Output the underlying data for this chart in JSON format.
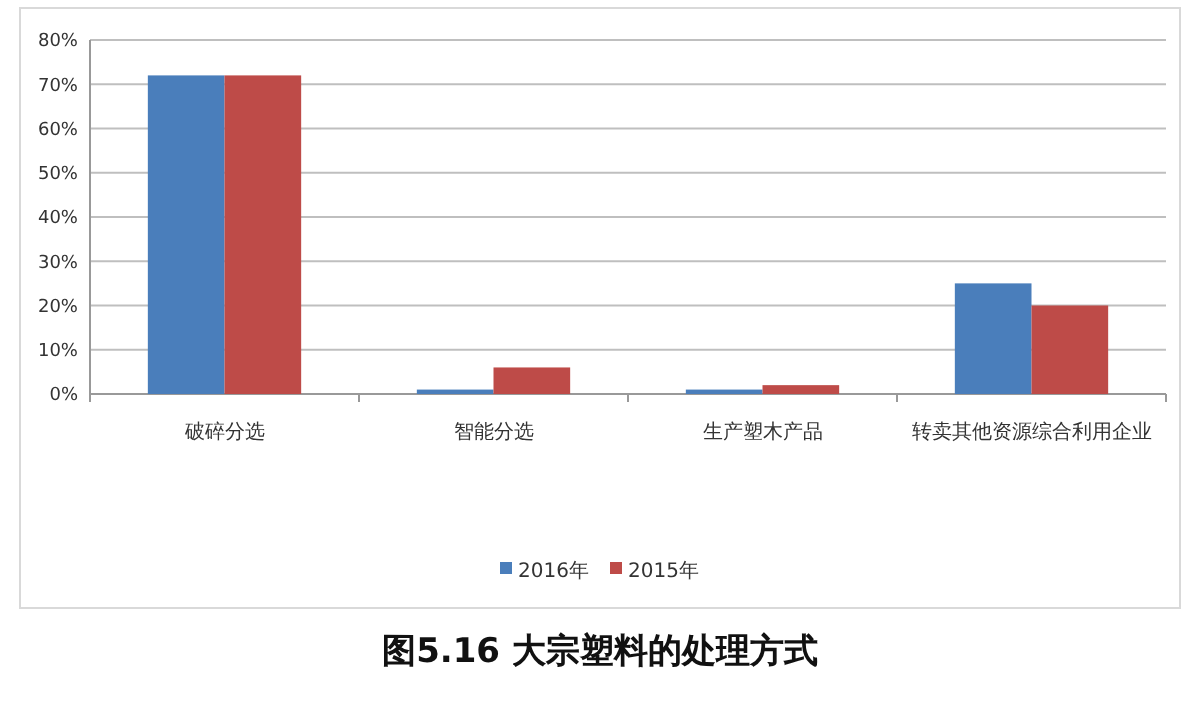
{
  "chart_data": {
    "type": "bar",
    "title": "图5.16 大宗塑料的处理方式",
    "categories": [
      "破碎分选",
      "智能分选",
      "生产塑木产品",
      "转卖其他资源综合利用企业"
    ],
    "series": [
      {
        "name": "2016年",
        "color": "#4a7ebb",
        "values": [
          72,
          1,
          1,
          25
        ]
      },
      {
        "name": "2015年",
        "color": "#be4b48",
        "values": [
          72,
          6,
          2,
          20
        ]
      }
    ],
    "ylim": [
      0,
      80
    ],
    "yticks": [
      {
        "value": 0,
        "label": "0%"
      },
      {
        "value": 10,
        "label": "10%"
      },
      {
        "value": 20,
        "label": "20%"
      },
      {
        "value": 30,
        "label": "30%"
      },
      {
        "value": 40,
        "label": "40%"
      },
      {
        "value": 50,
        "label": "50%"
      },
      {
        "value": 60,
        "label": "60%"
      },
      {
        "value": 70,
        "label": "70%"
      },
      {
        "value": 80,
        "label": "80%"
      }
    ],
    "grid": "y",
    "legend": "bottom"
  }
}
